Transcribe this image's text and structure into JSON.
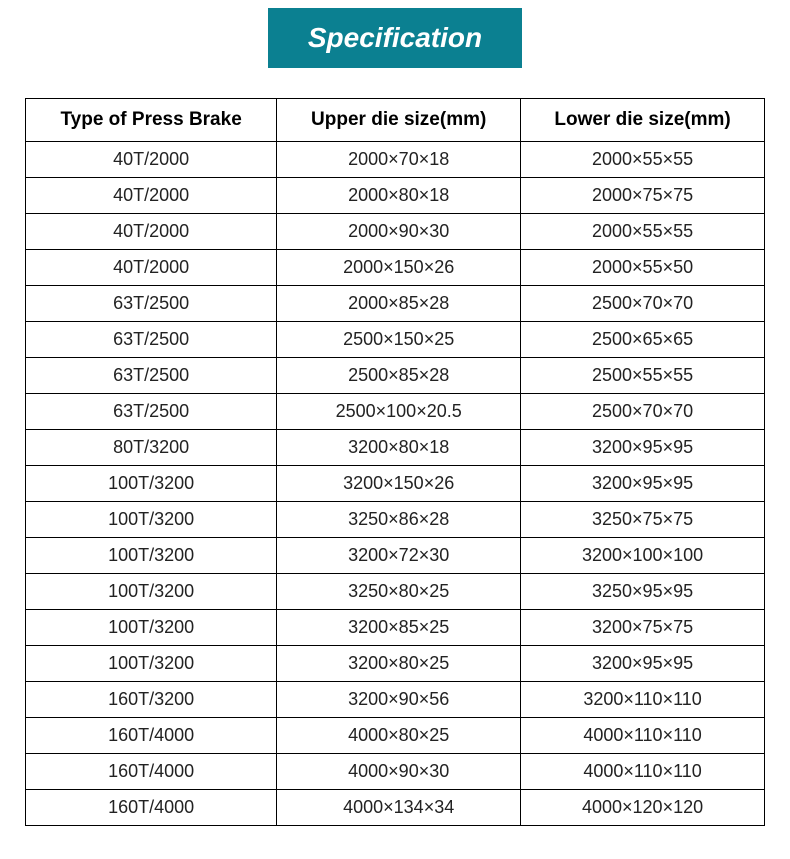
{
  "title": "Specification",
  "title_bg_color": "#0b8091",
  "title_text_color": "#ffffff",
  "title_fontsize": 28,
  "table": {
    "border_color": "#000000",
    "header_fontsize": 19,
    "cell_fontsize": 18,
    "columns": [
      "Type of Press Brake",
      "Upper die size(mm)",
      "Lower die size(mm)"
    ],
    "rows": [
      [
        "40T/2000",
        "2000×70×18",
        "2000×55×55"
      ],
      [
        "40T/2000",
        "2000×80×18",
        "2000×75×75"
      ],
      [
        "40T/2000",
        "2000×90×30",
        "2000×55×55"
      ],
      [
        "40T/2000",
        "2000×150×26",
        "2000×55×50"
      ],
      [
        "63T/2500",
        "2000×85×28",
        "2500×70×70"
      ],
      [
        "63T/2500",
        "2500×150×25",
        "2500×65×65"
      ],
      [
        "63T/2500",
        "2500×85×28",
        "2500×55×55"
      ],
      [
        "63T/2500",
        "2500×100×20.5",
        "2500×70×70"
      ],
      [
        "80T/3200",
        "3200×80×18",
        "3200×95×95"
      ],
      [
        "100T/3200",
        "3200×150×26",
        "3200×95×95"
      ],
      [
        "100T/3200",
        "3250×86×28",
        "3250×75×75"
      ],
      [
        "100T/3200",
        "3200×72×30",
        "3200×100×100"
      ],
      [
        "100T/3200",
        "3250×80×25",
        "3250×95×95"
      ],
      [
        "100T/3200",
        "3200×85×25",
        "3200×75×75"
      ],
      [
        "100T/3200",
        "3200×80×25",
        "3200×95×95"
      ],
      [
        "160T/3200",
        "3200×90×56",
        "3200×110×110"
      ],
      [
        "160T/4000",
        "4000×80×25",
        "4000×110×110"
      ],
      [
        "160T/4000",
        "4000×90×30",
        "4000×110×110"
      ],
      [
        "160T/4000",
        "4000×134×34",
        "4000×120×120"
      ]
    ]
  }
}
